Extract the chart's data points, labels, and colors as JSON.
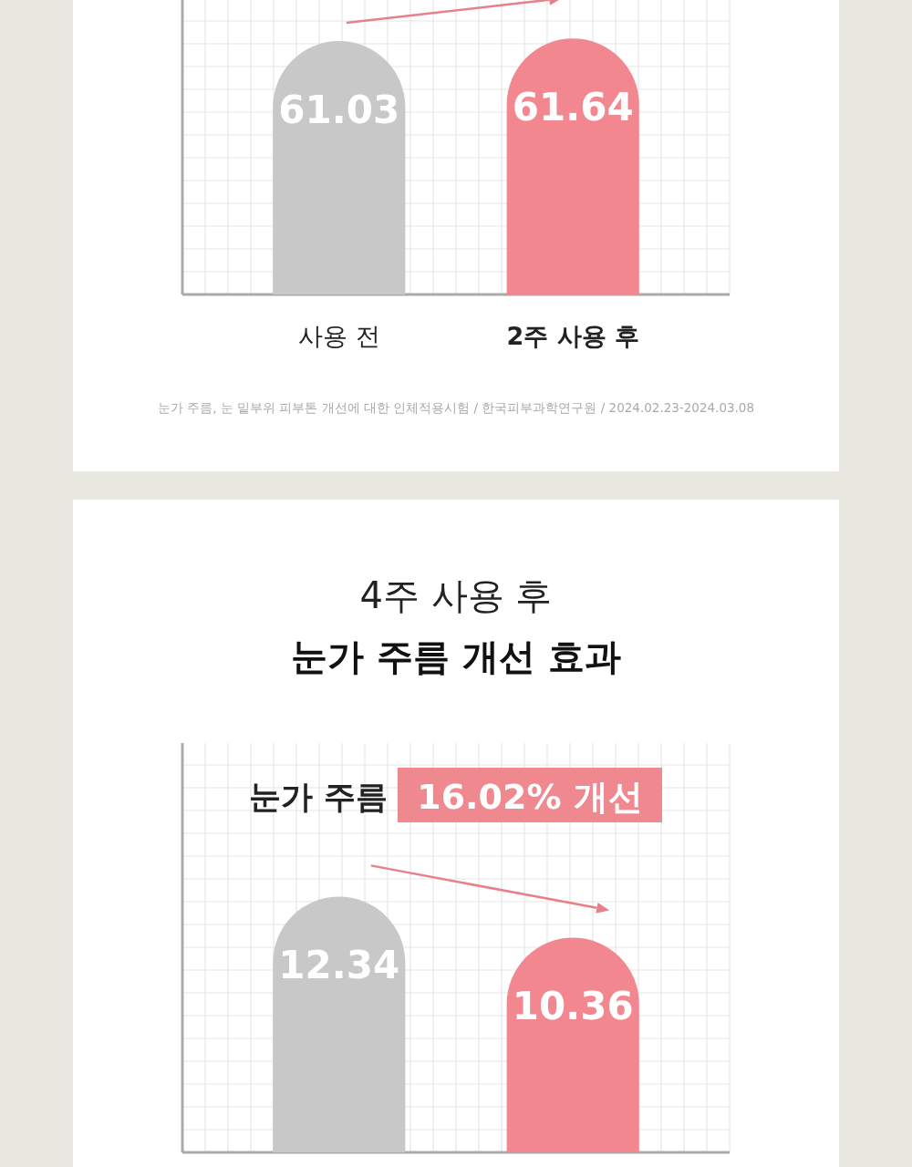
{
  "chart_data": [
    {
      "type": "bar",
      "categories": [
        "사용 전",
        "2주 사용 후"
      ],
      "values": [
        61.03,
        61.64
      ],
      "colors": [
        "#c8c8c8",
        "#f2878f"
      ],
      "data_labels": true,
      "grid": true,
      "annotations": [
        "눈가 주름, 눈 밑부위 피부톤 개선에 대한 인체적용시험 / 한국피부과학연구원 / 2024.02.23-2024.03.08"
      ]
    },
    {
      "type": "bar",
      "title": "4주 사용 후",
      "subtitle": "눈가 주름 개선 효과",
      "categories": [
        null,
        null
      ],
      "values": [
        12.34,
        10.36
      ],
      "colors": [
        "#c8c8c8",
        "#f2878f"
      ],
      "data_labels": true,
      "grid": true,
      "annotations": [
        "눈가 주름",
        "16.02% 개선"
      ]
    }
  ]
}
